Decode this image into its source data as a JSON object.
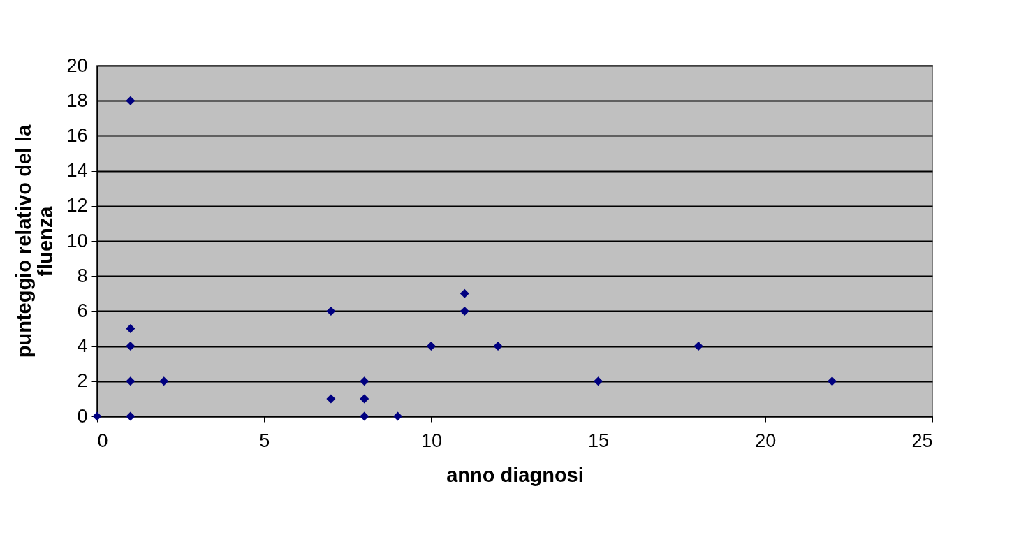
{
  "chart_data": {
    "type": "scatter",
    "xlabel": "anno diagnosi",
    "ylabel": "punteggio relativo del la\nfluenza",
    "x": [
      0,
      1,
      1,
      1,
      1,
      1,
      2,
      7,
      7,
      8,
      8,
      8,
      9,
      10,
      11,
      11,
      12,
      15,
      18,
      22
    ],
    "series": [
      {
        "color": "#000080",
        "values": [
          0,
          18,
          5,
          4,
          2,
          0,
          2,
          6,
          1,
          2,
          1,
          0,
          0,
          4,
          7,
          6,
          4,
          2,
          4,
          2
        ]
      }
    ],
    "xlim": [
      0,
      25
    ],
    "xticks": [
      0,
      5,
      10,
      15,
      20,
      25
    ],
    "ylim": [
      0,
      20
    ],
    "yticks": [
      0,
      2,
      4,
      6,
      8,
      10,
      12,
      14,
      16,
      18,
      20
    ],
    "grid": "y",
    "marker": "diamond"
  }
}
